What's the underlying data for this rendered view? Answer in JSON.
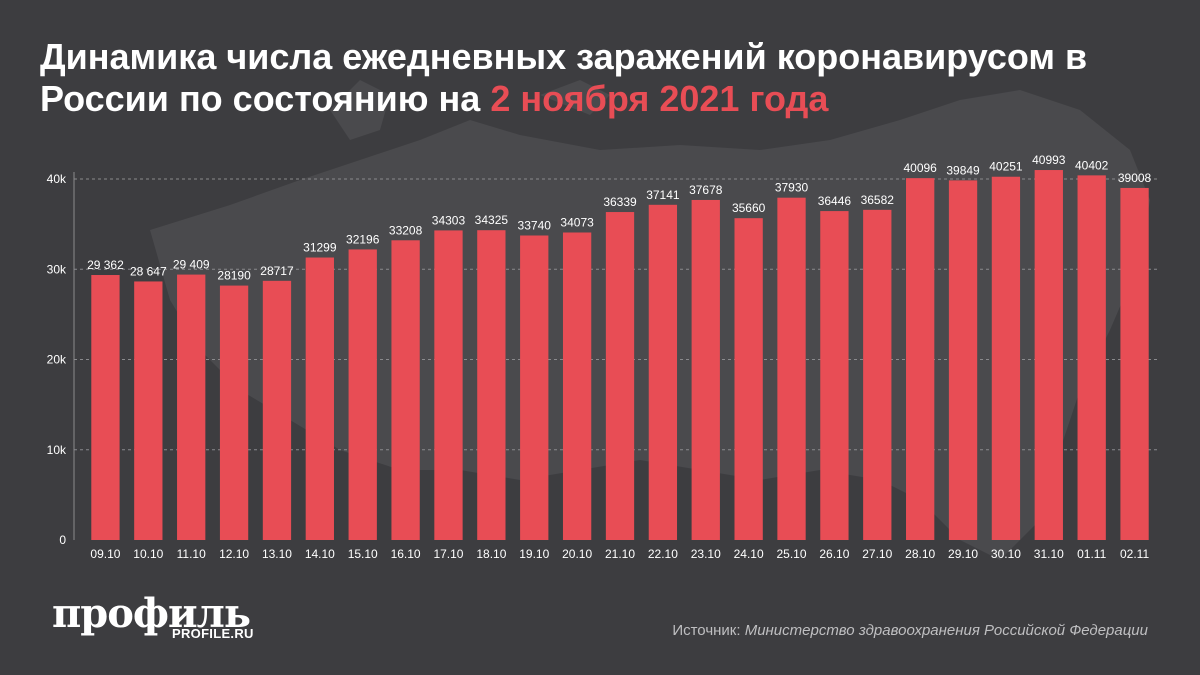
{
  "header": {
    "title_main": "Динамика числа ежедневных заражений коронавирусом в России по состоянию на ",
    "title_highlight": "2 ноября 2021 года"
  },
  "colors": {
    "background": "#3d3d40",
    "bar": "#e84d55",
    "highlight": "#e84d55",
    "text": "#ffffff",
    "grid": "#8a8a8d"
  },
  "chart_data": {
    "type": "bar",
    "categories": [
      "09.10",
      "10.10",
      "11.10",
      "12.10",
      "13.10",
      "14.10",
      "15.10",
      "16.10",
      "17.10",
      "18.10",
      "19.10",
      "20.10",
      "21.10",
      "22.10",
      "23.10",
      "24.10",
      "25.10",
      "26.10",
      "27.10",
      "28.10",
      "29.10",
      "30.10",
      "31.10",
      "01.11",
      "02.11"
    ],
    "values": [
      29362,
      28647,
      29409,
      28190,
      28717,
      31299,
      32196,
      33208,
      34303,
      34325,
      33740,
      34073,
      36339,
      37141,
      37678,
      35660,
      37930,
      36446,
      36582,
      40096,
      39849,
      40251,
      40993,
      40402,
      39008
    ],
    "value_labels": [
      "29 362",
      "28 647",
      "29 409",
      "28190",
      "28717",
      "31299",
      "32196",
      "33208",
      "34303",
      "34325",
      "33740",
      "34073",
      "36339",
      "37141",
      "37678",
      "35660",
      "37930",
      "36446",
      "36582",
      "40096",
      "39849",
      "40251",
      "40993",
      "40402",
      "39008"
    ],
    "ytick_labels": [
      "0",
      "10k",
      "20k",
      "30k",
      "40k"
    ],
    "yticks": [
      0,
      10000,
      20000,
      30000,
      40000
    ],
    "ylim": [
      0,
      46000
    ],
    "grid": true,
    "legend": "none"
  },
  "footer": {
    "logo": "профиль",
    "logo_sub": "PROFILE.RU",
    "source_prefix": "Источник: ",
    "source_name": "Министерство здравоохранения Российской Федерации"
  }
}
